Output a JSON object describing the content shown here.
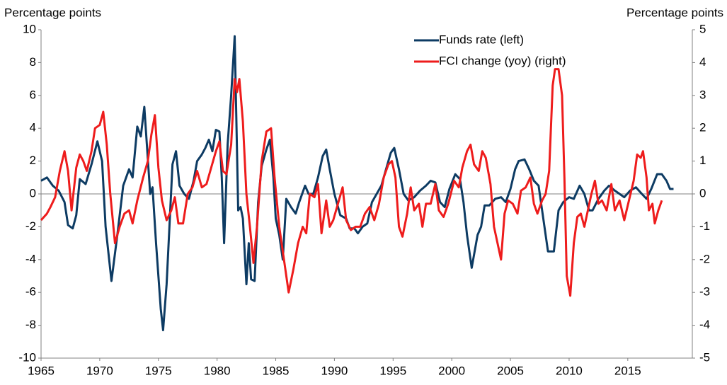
{
  "chart_data": {
    "type": "line",
    "y_label": "Percentage points",
    "y2_label": "Percentage points",
    "xlim": [
      1965,
      2020.5
    ],
    "xticks": [
      1965,
      1970,
      1975,
      1980,
      1985,
      1990,
      1995,
      2000,
      2005,
      2010,
      2015
    ],
    "ylim": [
      -10,
      10
    ],
    "yticks": [
      -10,
      -8,
      -6,
      -4,
      -2,
      0,
      2,
      4,
      6,
      8,
      10
    ],
    "y2lim": [
      -5,
      5
    ],
    "y2ticks": [
      -5,
      -4,
      -3,
      -2,
      -1,
      0,
      1,
      2,
      3,
      4,
      5
    ],
    "zero_line": true,
    "legend": "top-right",
    "series": [
      {
        "name": "Funds rate (left)",
        "color": "#0d3b63",
        "x": [
          1965,
          1965.5,
          1966,
          1966.5,
          1967,
          1967.3,
          1967.7,
          1968,
          1968.3,
          1968.8,
          1969.3,
          1969.8,
          1970.2,
          1970.5,
          1971,
          1971.5,
          1972,
          1972.5,
          1972.8,
          1973.2,
          1973.5,
          1973.8,
          1974.3,
          1974.5,
          1974.8,
          1975.2,
          1975.4,
          1975.7,
          1976.2,
          1976.5,
          1976.8,
          1977.2,
          1977.6,
          1978,
          1978.3,
          1978.7,
          1979,
          1979.3,
          1979.6,
          1979.9,
          1980.2,
          1980.4,
          1980.6,
          1980.9,
          1981.2,
          1981.5,
          1981.8,
          1982,
          1982.2,
          1982.5,
          1982.7,
          1982.9,
          1983.2,
          1983.5,
          1983.8,
          1984.2,
          1984.5,
          1984.8,
          1985,
          1985.3,
          1985.6,
          1985.9,
          1986.3,
          1986.7,
          1987,
          1987.5,
          1987.8,
          1988.2,
          1988.6,
          1989,
          1989.3,
          1989.6,
          1990,
          1990.5,
          1991,
          1991.3,
          1991.7,
          1992,
          1992.4,
          1992.8,
          1993.2,
          1993.6,
          1994,
          1994.4,
          1994.8,
          1995.1,
          1995.5,
          1995.9,
          1996.3,
          1996.8,
          1997.3,
          1997.8,
          1998.2,
          1998.6,
          1999,
          1999.4,
          1999.8,
          2000.3,
          2000.7,
          2001,
          2001.3,
          2001.7,
          2002.2,
          2002.5,
          2002.8,
          2003.2,
          2003.7,
          2004.2,
          2004.6,
          2005,
          2005.4,
          2005.7,
          2006.2,
          2006.6,
          2007,
          2007.4,
          2007.8,
          2008.2,
          2008.7,
          2009.1,
          2009.5,
          2010,
          2010.4,
          2010.9,
          2011.3,
          2011.7,
          2012,
          2012.5,
          2013,
          2013.4,
          2013.9,
          2014.3,
          2014.7,
          2015.2,
          2015.7,
          2016.2,
          2016.6,
          2017,
          2017.5,
          2017.9,
          2018.3,
          2018.6,
          2018.9
        ],
        "values": [
          0.8,
          1.0,
          0.5,
          0.2,
          -0.5,
          -1.9,
          -2.1,
          -1.3,
          0.9,
          0.6,
          1.8,
          3.2,
          2.0,
          -2.0,
          -5.3,
          -2.5,
          0.5,
          1.5,
          1.0,
          4.1,
          3.5,
          5.3,
          0.0,
          0.4,
          -3.0,
          -7.0,
          -8.3,
          -5.5,
          1.8,
          2.6,
          0.5,
          0.0,
          -0.3,
          0.8,
          2.0,
          2.4,
          2.8,
          3.3,
          2.6,
          3.9,
          3.8,
          1.0,
          -3.0,
          3.0,
          6.0,
          9.6,
          -1.0,
          -0.8,
          -1.5,
          -5.5,
          -3.0,
          -5.2,
          -5.3,
          -0.5,
          1.7,
          2.7,
          3.3,
          1.0,
          -1.5,
          -2.5,
          -4.0,
          -0.3,
          -0.8,
          -1.2,
          -0.5,
          0.5,
          0.0,
          0.0,
          1.0,
          2.3,
          2.7,
          1.5,
          0.0,
          -1.3,
          -1.5,
          -2.1,
          -2.1,
          -2.4,
          -2.0,
          -1.8,
          -0.5,
          0.0,
          0.5,
          1.5,
          2.5,
          2.8,
          1.5,
          0.0,
          -0.4,
          -0.2,
          0.2,
          0.5,
          0.8,
          0.7,
          -0.5,
          -0.8,
          0.3,
          1.2,
          0.9,
          -0.5,
          -2.5,
          -4.5,
          -2.5,
          -2.0,
          -0.7,
          -0.7,
          -0.3,
          -0.2,
          -0.5,
          0.3,
          1.5,
          2.0,
          2.1,
          1.5,
          0.8,
          0.5,
          -1.5,
          -3.5,
          -3.5,
          -1.0,
          -0.5,
          -0.2,
          -0.3,
          0.5,
          0.0,
          -1.0,
          -1.0,
          -0.3,
          0.2,
          0.5,
          0.2,
          0.0,
          -0.2,
          0.2,
          0.4,
          0.0,
          -0.3,
          0.3,
          1.2,
          1.2,
          0.8,
          0.3,
          0.3
        ]
      },
      {
        "name": "FCI change (yoy) (right)",
        "color": "#ee1c1c",
        "axis": "y2",
        "x": [
          1965,
          1965.5,
          1965.8,
          1966.2,
          1966.6,
          1967,
          1967.3,
          1967.6,
          1968,
          1968.3,
          1968.6,
          1968.9,
          1969.3,
          1969.6,
          1970,
          1970.3,
          1970.6,
          1970.9,
          1971.3,
          1971.7,
          1972.1,
          1972.5,
          1972.8,
          1973.2,
          1973.7,
          1974.1,
          1974.4,
          1974.7,
          1975,
          1975.3,
          1975.7,
          1976.1,
          1976.4,
          1976.7,
          1977.1,
          1977.5,
          1977.9,
          1978.3,
          1978.7,
          1979.1,
          1979.5,
          1979.9,
          1980.2,
          1980.5,
          1980.8,
          1981.2,
          1981.5,
          1981.7,
          1981.9,
          1982.2,
          1982.5,
          1982.8,
          1983.1,
          1983.4,
          1983.8,
          1984.2,
          1984.6,
          1984.9,
          1985.3,
          1985.7,
          1986.1,
          1986.5,
          1986.9,
          1987.3,
          1987.6,
          1987.9,
          1988.3,
          1988.6,
          1988.9,
          1989.3,
          1989.6,
          1989.9,
          1990.3,
          1990.7,
          1991,
          1991.4,
          1991.8,
          1992.2,
          1992.6,
          1993,
          1993.4,
          1993.8,
          1994.2,
          1994.6,
          1994.9,
          1995.2,
          1995.5,
          1995.8,
          1996.2,
          1996.5,
          1996.8,
          1997.2,
          1997.5,
          1997.8,
          1998.2,
          1998.6,
          1998.9,
          1999.3,
          1999.7,
          2000.2,
          2000.6,
          2000.9,
          2001.3,
          2001.6,
          2001.9,
          2002.3,
          2002.6,
          2002.9,
          2003.3,
          2003.6,
          2003.9,
          2004.2,
          2004.5,
          2004.8,
          2005.2,
          2005.6,
          2005.9,
          2006.3,
          2006.7,
          2007,
          2007.3,
          2007.7,
          2008,
          2008.3,
          2008.6,
          2008.8,
          2009.1,
          2009.4,
          2009.6,
          2009.8,
          2010.1,
          2010.4,
          2010.7,
          2011,
          2011.3,
          2011.6,
          2011.9,
          2012.2,
          2012.5,
          2012.8,
          2013.2,
          2013.6,
          2013.9,
          2014.3,
          2014.7,
          2015.1,
          2015.5,
          2015.8,
          2016.1,
          2016.3,
          2016.6,
          2016.8,
          2017.1,
          2017.3,
          2017.6,
          2017.9
        ],
        "values": [
          -0.8,
          -0.6,
          -0.4,
          -0.1,
          0.7,
          1.3,
          0.7,
          -0.5,
          0.8,
          1.2,
          1.0,
          0.7,
          1.3,
          2.0,
          2.1,
          2.5,
          1.5,
          0.0,
          -1.5,
          -1.0,
          -0.6,
          -0.5,
          -0.9,
          -0.2,
          0.5,
          1.0,
          1.8,
          2.4,
          0.8,
          -0.2,
          -0.8,
          -0.5,
          -0.1,
          -0.9,
          -0.9,
          0.0,
          0.2,
          0.7,
          0.2,
          0.3,
          0.8,
          1.3,
          1.6,
          0.7,
          0.6,
          1.5,
          3.5,
          3.1,
          3.5,
          2.2,
          0.0,
          -1.0,
          -2.1,
          -1.0,
          1.0,
          1.9,
          2.0,
          0.5,
          -1.0,
          -2.0,
          -3.0,
          -2.3,
          -1.5,
          -1.0,
          -1.2,
          0.0,
          -0.1,
          0.3,
          -1.2,
          -0.2,
          -1.0,
          -0.8,
          -0.3,
          0.2,
          -0.8,
          -1.1,
          -1.0,
          -1.0,
          -0.6,
          -0.4,
          -0.8,
          -0.3,
          0.5,
          0.9,
          1.0,
          0.5,
          -1.0,
          -1.3,
          -0.6,
          0.2,
          -0.5,
          -0.3,
          -1.0,
          -0.3,
          -0.3,
          0.3,
          -0.5,
          -0.7,
          -0.3,
          0.4,
          0.2,
          0.8,
          1.3,
          1.5,
          0.9,
          0.7,
          1.3,
          1.1,
          0.3,
          -1.0,
          -1.5,
          -2.0,
          -0.6,
          -0.2,
          -0.3,
          -0.6,
          0.1,
          0.2,
          0.5,
          -0.3,
          -0.6,
          -0.2,
          0.0,
          0.7,
          3.3,
          3.8,
          3.8,
          3.0,
          0.5,
          -2.5,
          -3.1,
          -1.5,
          -0.7,
          -0.6,
          -1.0,
          -0.5,
          0.0,
          0.4,
          -0.3,
          -0.2,
          -0.5,
          0.3,
          -0.5,
          -0.2,
          -0.8,
          -0.2,
          0.4,
          1.2,
          1.1,
          1.3,
          0.5,
          -0.5,
          -0.3,
          -0.9,
          -0.5,
          -0.2
        ]
      }
    ]
  }
}
